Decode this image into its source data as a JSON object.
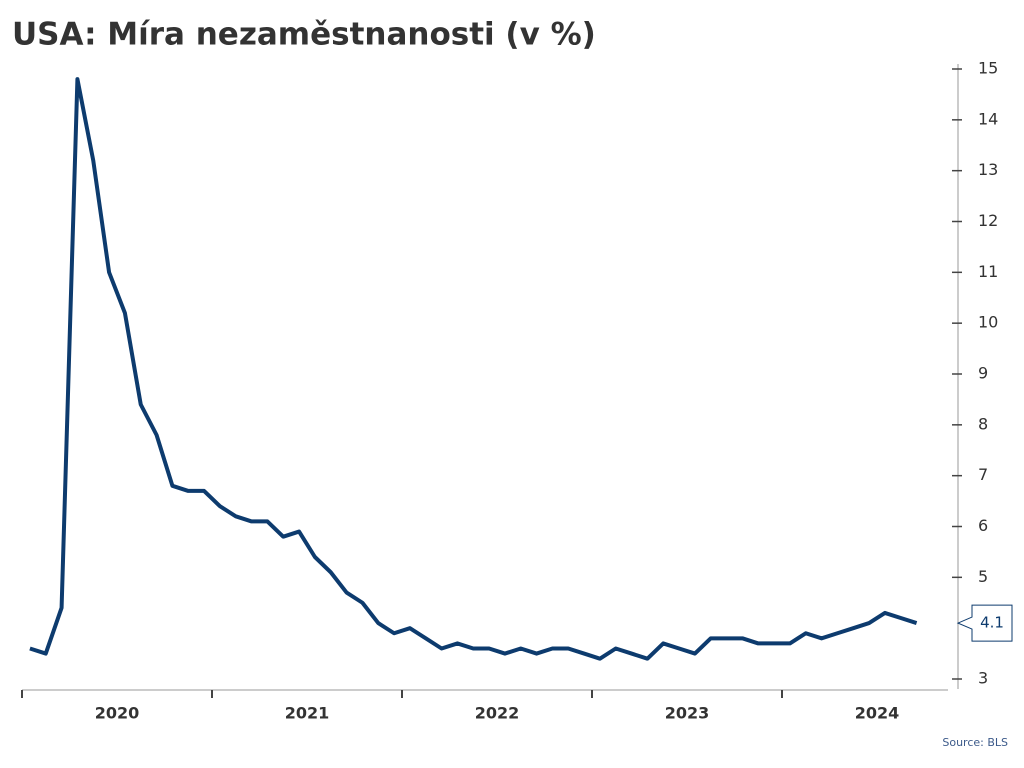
{
  "chart_data": {
    "type": "line",
    "title": "USA: Míra nezaměstnanosti (v %)",
    "source": "Source: BLS",
    "categories": [
      null,
      null,
      null,
      null,
      null,
      null,
      "2020",
      null,
      null,
      null,
      null,
      null,
      null,
      null,
      null,
      null,
      null,
      null,
      "2021",
      null,
      null,
      null,
      null,
      null,
      null,
      null,
      null,
      null,
      null,
      null,
      "2022",
      null,
      null,
      null,
      null,
      null,
      null,
      null,
      null,
      null,
      null,
      null,
      "2023",
      null,
      null,
      null,
      null,
      null,
      null,
      null,
      null,
      null,
      null,
      null,
      "2024",
      null,
      null
    ],
    "values": [
      3.6,
      3.5,
      4.4,
      14.8,
      13.2,
      11.0,
      10.2,
      8.4,
      7.8,
      6.8,
      6.7,
      6.7,
      6.4,
      6.2,
      6.1,
      6.1,
      5.8,
      5.9,
      5.4,
      5.1,
      4.7,
      4.5,
      4.1,
      3.9,
      4.0,
      3.8,
      3.6,
      3.7,
      3.6,
      3.6,
      3.5,
      3.6,
      3.5,
      3.6,
      3.6,
      3.5,
      3.4,
      3.6,
      3.5,
      3.4,
      3.7,
      3.6,
      3.5,
      3.8,
      3.8,
      3.8,
      3.7,
      3.7,
      3.7,
      3.9,
      3.8,
      3.9,
      4.0,
      4.1,
      4.3,
      4.2,
      4.1
    ],
    "color": "#0d3b6e",
    "ylim": [
      3,
      15
    ],
    "yticks": [
      3,
      5,
      6,
      7,
      8,
      9,
      10,
      11,
      12,
      13,
      14,
      15
    ]
  }
}
